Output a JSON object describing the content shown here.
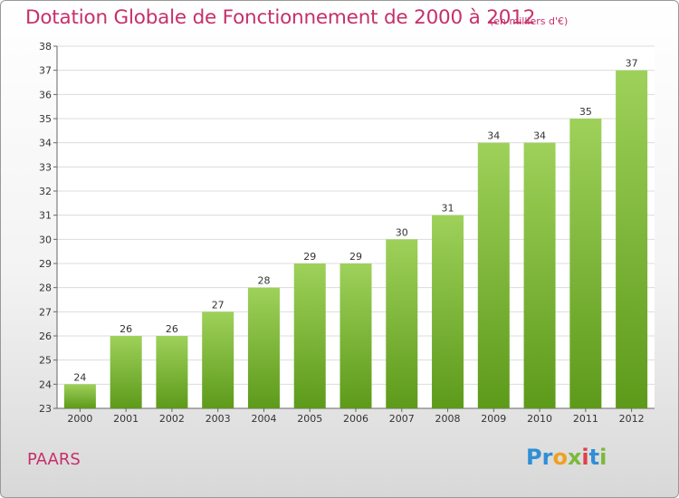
{
  "chart_data": {
    "type": "bar",
    "title": "Dotation Globale de Fonctionnement de 2000 à 2012",
    "subtitle": "(en milliers d'€)",
    "categories": [
      "2000",
      "2001",
      "2002",
      "2003",
      "2004",
      "2005",
      "2006",
      "2007",
      "2008",
      "2009",
      "2010",
      "2011",
      "2012"
    ],
    "values": [
      24,
      26,
      26,
      27,
      28,
      29,
      29,
      30,
      31,
      34,
      34,
      35,
      37
    ],
    "xlabel": "",
    "ylabel": "",
    "ylim": [
      23,
      38
    ],
    "yticks": [
      "23",
      "24",
      "25",
      "26",
      "27",
      "28",
      "29",
      "30",
      "31",
      "32",
      "33",
      "34",
      "35",
      "36",
      "37",
      "38"
    ],
    "grid": true,
    "bar_color": "#7cb93a"
  },
  "footer": {
    "commune": "PAARS",
    "logo_parts": [
      "Pr",
      "o",
      "x",
      "i",
      "t",
      "i"
    ],
    "logo_colors": [
      "#2f8fd6",
      "#f0a020",
      "#7cb93a",
      "#e0404a"
    ]
  }
}
